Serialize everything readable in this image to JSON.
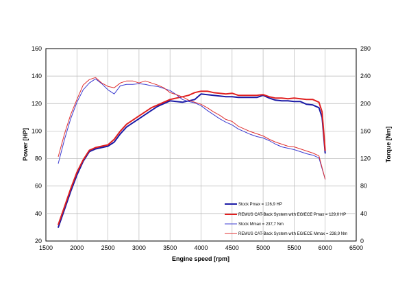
{
  "chart_data": {
    "type": "line",
    "xlabel": "Engine speed [rpm]",
    "ylabel_left": "Power [HP]",
    "ylabel_right": "Torque [Nm]",
    "xlim": [
      1500,
      6500
    ],
    "ylim_left": [
      20,
      160
    ],
    "ylim_right": [
      0,
      280
    ],
    "xticks": [
      1500,
      2000,
      2500,
      3000,
      3500,
      4000,
      4500,
      5000,
      5500,
      6000,
      6500
    ],
    "yticks_left": [
      20,
      40,
      60,
      80,
      100,
      120,
      140,
      160
    ],
    "yticks_right": [
      0,
      40,
      80,
      120,
      160,
      200,
      240,
      280
    ],
    "grid": true,
    "legend_position": "bottom-right",
    "series": [
      {
        "name": "Stock Pmax = 126,9 HP",
        "axis": "left",
        "color": "#1a1aa6",
        "width": 2,
        "x": [
          1700,
          1800,
          1900,
          2000,
          2100,
          2200,
          2300,
          2400,
          2500,
          2600,
          2700,
          2800,
          2900,
          3000,
          3100,
          3200,
          3300,
          3400,
          3500,
          3600,
          3700,
          3800,
          3900,
          4000,
          4100,
          4200,
          4300,
          4400,
          4500,
          4600,
          4700,
          4800,
          4900,
          5000,
          5100,
          5200,
          5300,
          5400,
          5500,
          5600,
          5700,
          5800,
          5900,
          5950,
          6000
        ],
        "y": [
          30,
          43,
          56,
          68,
          78,
          85,
          87,
          88,
          89,
          92,
          98,
          103,
          106,
          109,
          112,
          115,
          118,
          120,
          122,
          121.5,
          121,
          122,
          123,
          127,
          126.5,
          126,
          125.5,
          125,
          125,
          124.5,
          124.5,
          124.5,
          124.5,
          126,
          124,
          122.5,
          122,
          122,
          121.5,
          121.5,
          119.5,
          119,
          117,
          110,
          84
        ]
      },
      {
        "name": "REMUS CAT-Back System with EG/ECE Pmax =  129,0 HP",
        "axis": "left",
        "color": "#e02020",
        "width": 2,
        "x": [
          1700,
          1800,
          1900,
          2000,
          2100,
          2200,
          2300,
          2400,
          2500,
          2600,
          2700,
          2800,
          2900,
          3000,
          3100,
          3200,
          3300,
          3400,
          3500,
          3600,
          3700,
          3800,
          3900,
          4000,
          4100,
          4200,
          4300,
          4400,
          4500,
          4600,
          4700,
          4800,
          4900,
          5000,
          5100,
          5200,
          5300,
          5400,
          5500,
          5600,
          5700,
          5800,
          5900,
          5950,
          6000
        ],
        "y": [
          32,
          45,
          58,
          70,
          79,
          86,
          88,
          89,
          90,
          94,
          100,
          105,
          108,
          111,
          114,
          117,
          119,
          121,
          123,
          124,
          125,
          126,
          128,
          129,
          129,
          128,
          127.5,
          127,
          127.5,
          126,
          126,
          126,
          126,
          126.5,
          125,
          124,
          124,
          123.5,
          124,
          123.5,
          123,
          123,
          121,
          114,
          86
        ]
      },
      {
        "name": "Stock Mmax = 237,7 Nm",
        "axis": "right",
        "color": "#3b3bd0",
        "width": 1,
        "x": [
          1700,
          1800,
          1900,
          2000,
          2100,
          2200,
          2300,
          2400,
          2500,
          2600,
          2700,
          2800,
          2900,
          3000,
          3100,
          3200,
          3300,
          3400,
          3500,
          3600,
          3700,
          3800,
          3900,
          4000,
          4100,
          4200,
          4300,
          4400,
          4500,
          4600,
          4700,
          4800,
          4900,
          5000,
          5100,
          5200,
          5300,
          5400,
          5500,
          5600,
          5700,
          5800,
          5900,
          6000
        ],
        "y": [
          113,
          148,
          178,
          202,
          220,
          230,
          236,
          229,
          220,
          214,
          226,
          228,
          228,
          229,
          228,
          226,
          225,
          222,
          219,
          213,
          206,
          203,
          201,
          197,
          190,
          184,
          178,
          173,
          169,
          163,
          159,
          155,
          152,
          150,
          146,
          141,
          137,
          135,
          133,
          130,
          127,
          125,
          121,
          90
        ]
      },
      {
        "name": "REMUS CAT-Back System with EG/ECE Mmax = 238,9 Nm",
        "axis": "right",
        "color": "#e03030",
        "width": 1,
        "x": [
          1700,
          1800,
          1900,
          2000,
          2100,
          2200,
          2300,
          2400,
          2500,
          2600,
          2700,
          2800,
          2900,
          3000,
          3100,
          3200,
          3300,
          3400,
          3500,
          3600,
          3700,
          3800,
          3900,
          4000,
          4100,
          4200,
          4300,
          4400,
          4500,
          4600,
          4700,
          4800,
          4900,
          5000,
          5100,
          5200,
          5300,
          5400,
          5500,
          5600,
          5700,
          5800,
          5900,
          6000
        ],
        "y": [
          123,
          156,
          184,
          206,
          227,
          235,
          238,
          230,
          225,
          223,
          230,
          233,
          233,
          230,
          233,
          230,
          227,
          223,
          216,
          213,
          210,
          205,
          202,
          199,
          194,
          188,
          183,
          177,
          174,
          167,
          163,
          159,
          156,
          153,
          148,
          144,
          141,
          138,
          137,
          134,
          131,
          128,
          124,
          90
        ]
      }
    ]
  }
}
